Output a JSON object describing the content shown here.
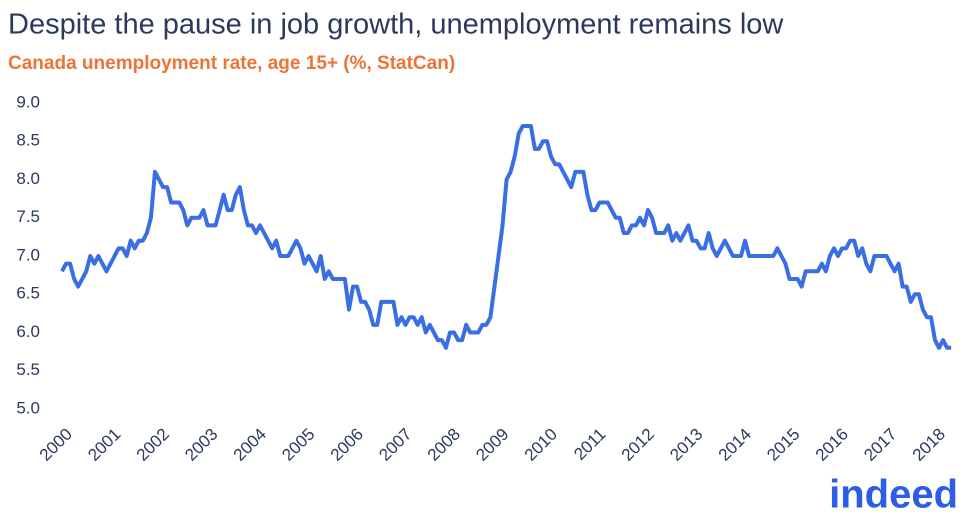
{
  "chart_data": {
    "type": "line",
    "title": "Despite the pause in job growth, unemployment remains low",
    "subtitle": "Canada unemployment rate, age 15+ (%, StatCan)",
    "logo": "indeed",
    "x": [
      2000,
      2000.083,
      2000.167,
      2000.25,
      2000.333,
      2000.417,
      2000.5,
      2000.583,
      2000.667,
      2000.75,
      2000.833,
      2000.917,
      2001,
      2001.083,
      2001.167,
      2001.25,
      2001.333,
      2001.417,
      2001.5,
      2001.583,
      2001.667,
      2001.75,
      2001.833,
      2001.917,
      2002,
      2002.083,
      2002.167,
      2002.25,
      2002.333,
      2002.417,
      2002.5,
      2002.583,
      2002.667,
      2002.75,
      2002.833,
      2002.917,
      2003,
      2003.083,
      2003.167,
      2003.25,
      2003.333,
      2003.417,
      2003.5,
      2003.583,
      2003.667,
      2003.75,
      2003.833,
      2003.917,
      2004,
      2004.083,
      2004.167,
      2004.25,
      2004.333,
      2004.417,
      2004.5,
      2004.583,
      2004.667,
      2004.75,
      2004.833,
      2004.917,
      2005,
      2005.083,
      2005.167,
      2005.25,
      2005.333,
      2005.417,
      2005.5,
      2005.583,
      2005.667,
      2005.75,
      2005.833,
      2005.917,
      2006,
      2006.083,
      2006.167,
      2006.25,
      2006.333,
      2006.417,
      2006.5,
      2006.583,
      2006.667,
      2006.75,
      2006.833,
      2006.917,
      2007,
      2007.083,
      2007.167,
      2007.25,
      2007.333,
      2007.417,
      2007.5,
      2007.583,
      2007.667,
      2007.75,
      2007.833,
      2007.917,
      2008,
      2008.083,
      2008.167,
      2008.25,
      2008.333,
      2008.417,
      2008.5,
      2008.583,
      2008.667,
      2008.75,
      2008.833,
      2008.917,
      2009,
      2009.083,
      2009.167,
      2009.25,
      2009.333,
      2009.417,
      2009.5,
      2009.583,
      2009.667,
      2009.75,
      2009.833,
      2009.917,
      2010,
      2010.083,
      2010.167,
      2010.25,
      2010.333,
      2010.417,
      2010.5,
      2010.583,
      2010.667,
      2010.75,
      2010.833,
      2010.917,
      2011,
      2011.083,
      2011.167,
      2011.25,
      2011.333,
      2011.417,
      2011.5,
      2011.583,
      2011.667,
      2011.75,
      2011.833,
      2011.917,
      2012,
      2012.083,
      2012.167,
      2012.25,
      2012.333,
      2012.417,
      2012.5,
      2012.583,
      2012.667,
      2012.75,
      2012.833,
      2012.917,
      2013,
      2013.083,
      2013.167,
      2013.25,
      2013.333,
      2013.417,
      2013.5,
      2013.583,
      2013.667,
      2013.75,
      2013.833,
      2013.917,
      2014,
      2014.083,
      2014.167,
      2014.25,
      2014.333,
      2014.417,
      2014.5,
      2014.583,
      2014.667,
      2014.75,
      2014.833,
      2014.917,
      2015,
      2015.083,
      2015.167,
      2015.25,
      2015.333,
      2015.417,
      2015.5,
      2015.583,
      2015.667,
      2015.75,
      2015.833,
      2015.917,
      2016,
      2016.083,
      2016.167,
      2016.25,
      2016.333,
      2016.417,
      2016.5,
      2016.583,
      2016.667,
      2016.75,
      2016.833,
      2016.917,
      2017,
      2017.083,
      2017.167,
      2017.25,
      2017.333,
      2017.417,
      2017.5,
      2017.583,
      2017.667,
      2017.75,
      2017.833,
      2017.917,
      2018,
      2018.083,
      2018.167,
      2018.25,
      2018.333
    ],
    "series": [
      {
        "name": "Unemployment rate",
        "color": "#3a6ee3",
        "values": [
          6.8,
          6.9,
          6.9,
          6.7,
          6.6,
          6.7,
          6.8,
          7.0,
          6.9,
          7.0,
          6.9,
          6.8,
          6.9,
          7.0,
          7.1,
          7.1,
          7.0,
          7.2,
          7.1,
          7.2,
          7.2,
          7.3,
          7.5,
          8.1,
          8.0,
          7.9,
          7.9,
          7.7,
          7.7,
          7.7,
          7.6,
          7.4,
          7.5,
          7.5,
          7.5,
          7.6,
          7.4,
          7.4,
          7.4,
          7.6,
          7.8,
          7.6,
          7.6,
          7.8,
          7.9,
          7.6,
          7.4,
          7.4,
          7.3,
          7.4,
          7.3,
          7.2,
          7.1,
          7.2,
          7.0,
          7.0,
          7.0,
          7.1,
          7.2,
          7.1,
          6.9,
          7.0,
          6.9,
          6.8,
          7.0,
          6.7,
          6.8,
          6.7,
          6.7,
          6.7,
          6.7,
          6.3,
          6.6,
          6.6,
          6.4,
          6.4,
          6.3,
          6.1,
          6.1,
          6.4,
          6.4,
          6.4,
          6.4,
          6.1,
          6.2,
          6.1,
          6.2,
          6.2,
          6.1,
          6.2,
          6.0,
          6.1,
          6.0,
          5.9,
          5.9,
          5.8,
          6.0,
          6.0,
          5.9,
          5.9,
          6.1,
          6.0,
          6.0,
          6.0,
          6.1,
          6.1,
          6.2,
          6.6,
          7.0,
          7.4,
          8.0,
          8.1,
          8.3,
          8.6,
          8.7,
          8.7,
          8.7,
          8.4,
          8.4,
          8.5,
          8.5,
          8.3,
          8.2,
          8.2,
          8.1,
          8.0,
          7.9,
          8.1,
          8.1,
          8.1,
          7.8,
          7.6,
          7.6,
          7.7,
          7.7,
          7.7,
          7.6,
          7.5,
          7.5,
          7.3,
          7.3,
          7.4,
          7.4,
          7.5,
          7.4,
          7.6,
          7.5,
          7.3,
          7.3,
          7.3,
          7.4,
          7.2,
          7.3,
          7.2,
          7.3,
          7.4,
          7.2,
          7.2,
          7.1,
          7.1,
          7.3,
          7.1,
          7.0,
          7.1,
          7.2,
          7.1,
          7.0,
          7.0,
          7.0,
          7.2,
          7.0,
          7.0,
          7.0,
          7.0,
          7.0,
          7.0,
          7.0,
          7.1,
          7.0,
          6.9,
          6.7,
          6.7,
          6.7,
          6.6,
          6.8,
          6.8,
          6.8,
          6.8,
          6.9,
          6.8,
          7.0,
          7.1,
          7.0,
          7.1,
          7.1,
          7.2,
          7.2,
          7.0,
          7.1,
          6.9,
          6.8,
          7.0,
          7.0,
          7.0,
          7.0,
          6.9,
          6.8,
          6.9,
          6.6,
          6.6,
          6.4,
          6.5,
          6.5,
          6.3,
          6.2,
          6.2,
          5.9,
          5.8,
          5.9,
          5.8,
          5.8
        ]
      }
    ],
    "xlim": [
      2000,
      2018.6
    ],
    "xticks": [
      2000,
      2001,
      2002,
      2003,
      2004,
      2005,
      2006,
      2007,
      2008,
      2009,
      2010,
      2011,
      2012,
      2013,
      2014,
      2015,
      2016,
      2017,
      2018
    ],
    "ylim": [
      5,
      9
    ],
    "yticks": [
      {
        "value": 5,
        "label": "5.0"
      },
      5.5,
      {
        "value": 6,
        "label": "6.0"
      },
      6.5,
      {
        "value": 7,
        "label": "7.0"
      },
      7.5,
      {
        "value": 8,
        "label": "8.0"
      },
      8.5,
      {
        "value": 9,
        "label": "9.0"
      }
    ],
    "grid": false
  }
}
